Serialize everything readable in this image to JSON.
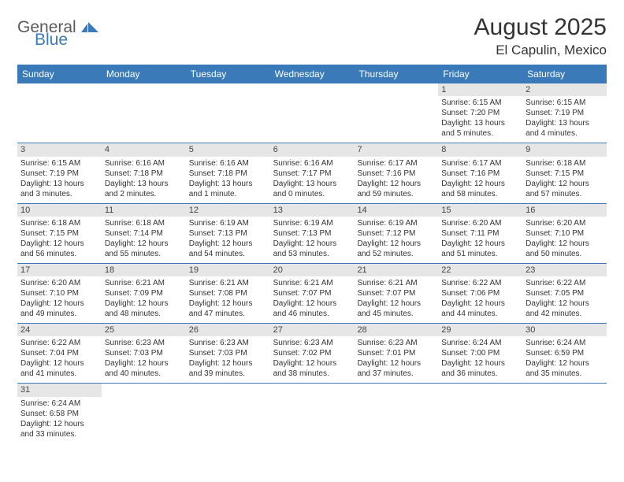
{
  "logo": {
    "text_general": "General",
    "text_blue": "Blue",
    "icon_color": "#3a7ab8",
    "general_color": "#5a5a5a"
  },
  "title": {
    "month_year": "August 2025",
    "location": "El Capulin, Mexico"
  },
  "colors": {
    "header_bg": "#3a7ab8",
    "header_text": "#ffffff",
    "row_border": "#3a7ab8",
    "daynum_bg": "#e6e6e6",
    "text": "#333333"
  },
  "weekdays": [
    "Sunday",
    "Monday",
    "Tuesday",
    "Wednesday",
    "Thursday",
    "Friday",
    "Saturday"
  ],
  "weeks": [
    [
      null,
      null,
      null,
      null,
      null,
      {
        "day": "1",
        "sunrise": "Sunrise: 6:15 AM",
        "sunset": "Sunset: 7:20 PM",
        "daylight1": "Daylight: 13 hours",
        "daylight2": "and 5 minutes."
      },
      {
        "day": "2",
        "sunrise": "Sunrise: 6:15 AM",
        "sunset": "Sunset: 7:19 PM",
        "daylight1": "Daylight: 13 hours",
        "daylight2": "and 4 minutes."
      }
    ],
    [
      {
        "day": "3",
        "sunrise": "Sunrise: 6:15 AM",
        "sunset": "Sunset: 7:19 PM",
        "daylight1": "Daylight: 13 hours",
        "daylight2": "and 3 minutes."
      },
      {
        "day": "4",
        "sunrise": "Sunrise: 6:16 AM",
        "sunset": "Sunset: 7:18 PM",
        "daylight1": "Daylight: 13 hours",
        "daylight2": "and 2 minutes."
      },
      {
        "day": "5",
        "sunrise": "Sunrise: 6:16 AM",
        "sunset": "Sunset: 7:18 PM",
        "daylight1": "Daylight: 13 hours",
        "daylight2": "and 1 minute."
      },
      {
        "day": "6",
        "sunrise": "Sunrise: 6:16 AM",
        "sunset": "Sunset: 7:17 PM",
        "daylight1": "Daylight: 13 hours",
        "daylight2": "and 0 minutes."
      },
      {
        "day": "7",
        "sunrise": "Sunrise: 6:17 AM",
        "sunset": "Sunset: 7:16 PM",
        "daylight1": "Daylight: 12 hours",
        "daylight2": "and 59 minutes."
      },
      {
        "day": "8",
        "sunrise": "Sunrise: 6:17 AM",
        "sunset": "Sunset: 7:16 PM",
        "daylight1": "Daylight: 12 hours",
        "daylight2": "and 58 minutes."
      },
      {
        "day": "9",
        "sunrise": "Sunrise: 6:18 AM",
        "sunset": "Sunset: 7:15 PM",
        "daylight1": "Daylight: 12 hours",
        "daylight2": "and 57 minutes."
      }
    ],
    [
      {
        "day": "10",
        "sunrise": "Sunrise: 6:18 AM",
        "sunset": "Sunset: 7:15 PM",
        "daylight1": "Daylight: 12 hours",
        "daylight2": "and 56 minutes."
      },
      {
        "day": "11",
        "sunrise": "Sunrise: 6:18 AM",
        "sunset": "Sunset: 7:14 PM",
        "daylight1": "Daylight: 12 hours",
        "daylight2": "and 55 minutes."
      },
      {
        "day": "12",
        "sunrise": "Sunrise: 6:19 AM",
        "sunset": "Sunset: 7:13 PM",
        "daylight1": "Daylight: 12 hours",
        "daylight2": "and 54 minutes."
      },
      {
        "day": "13",
        "sunrise": "Sunrise: 6:19 AM",
        "sunset": "Sunset: 7:13 PM",
        "daylight1": "Daylight: 12 hours",
        "daylight2": "and 53 minutes."
      },
      {
        "day": "14",
        "sunrise": "Sunrise: 6:19 AM",
        "sunset": "Sunset: 7:12 PM",
        "daylight1": "Daylight: 12 hours",
        "daylight2": "and 52 minutes."
      },
      {
        "day": "15",
        "sunrise": "Sunrise: 6:20 AM",
        "sunset": "Sunset: 7:11 PM",
        "daylight1": "Daylight: 12 hours",
        "daylight2": "and 51 minutes."
      },
      {
        "day": "16",
        "sunrise": "Sunrise: 6:20 AM",
        "sunset": "Sunset: 7:10 PM",
        "daylight1": "Daylight: 12 hours",
        "daylight2": "and 50 minutes."
      }
    ],
    [
      {
        "day": "17",
        "sunrise": "Sunrise: 6:20 AM",
        "sunset": "Sunset: 7:10 PM",
        "daylight1": "Daylight: 12 hours",
        "daylight2": "and 49 minutes."
      },
      {
        "day": "18",
        "sunrise": "Sunrise: 6:21 AM",
        "sunset": "Sunset: 7:09 PM",
        "daylight1": "Daylight: 12 hours",
        "daylight2": "and 48 minutes."
      },
      {
        "day": "19",
        "sunrise": "Sunrise: 6:21 AM",
        "sunset": "Sunset: 7:08 PM",
        "daylight1": "Daylight: 12 hours",
        "daylight2": "and 47 minutes."
      },
      {
        "day": "20",
        "sunrise": "Sunrise: 6:21 AM",
        "sunset": "Sunset: 7:07 PM",
        "daylight1": "Daylight: 12 hours",
        "daylight2": "and 46 minutes."
      },
      {
        "day": "21",
        "sunrise": "Sunrise: 6:21 AM",
        "sunset": "Sunset: 7:07 PM",
        "daylight1": "Daylight: 12 hours",
        "daylight2": "and 45 minutes."
      },
      {
        "day": "22",
        "sunrise": "Sunrise: 6:22 AM",
        "sunset": "Sunset: 7:06 PM",
        "daylight1": "Daylight: 12 hours",
        "daylight2": "and 44 minutes."
      },
      {
        "day": "23",
        "sunrise": "Sunrise: 6:22 AM",
        "sunset": "Sunset: 7:05 PM",
        "daylight1": "Daylight: 12 hours",
        "daylight2": "and 42 minutes."
      }
    ],
    [
      {
        "day": "24",
        "sunrise": "Sunrise: 6:22 AM",
        "sunset": "Sunset: 7:04 PM",
        "daylight1": "Daylight: 12 hours",
        "daylight2": "and 41 minutes."
      },
      {
        "day": "25",
        "sunrise": "Sunrise: 6:23 AM",
        "sunset": "Sunset: 7:03 PM",
        "daylight1": "Daylight: 12 hours",
        "daylight2": "and 40 minutes."
      },
      {
        "day": "26",
        "sunrise": "Sunrise: 6:23 AM",
        "sunset": "Sunset: 7:03 PM",
        "daylight1": "Daylight: 12 hours",
        "daylight2": "and 39 minutes."
      },
      {
        "day": "27",
        "sunrise": "Sunrise: 6:23 AM",
        "sunset": "Sunset: 7:02 PM",
        "daylight1": "Daylight: 12 hours",
        "daylight2": "and 38 minutes."
      },
      {
        "day": "28",
        "sunrise": "Sunrise: 6:23 AM",
        "sunset": "Sunset: 7:01 PM",
        "daylight1": "Daylight: 12 hours",
        "daylight2": "and 37 minutes."
      },
      {
        "day": "29",
        "sunrise": "Sunrise: 6:24 AM",
        "sunset": "Sunset: 7:00 PM",
        "daylight1": "Daylight: 12 hours",
        "daylight2": "and 36 minutes."
      },
      {
        "day": "30",
        "sunrise": "Sunrise: 6:24 AM",
        "sunset": "Sunset: 6:59 PM",
        "daylight1": "Daylight: 12 hours",
        "daylight2": "and 35 minutes."
      }
    ],
    [
      {
        "day": "31",
        "sunrise": "Sunrise: 6:24 AM",
        "sunset": "Sunset: 6:58 PM",
        "daylight1": "Daylight: 12 hours",
        "daylight2": "and 33 minutes."
      },
      null,
      null,
      null,
      null,
      null,
      null
    ]
  ]
}
